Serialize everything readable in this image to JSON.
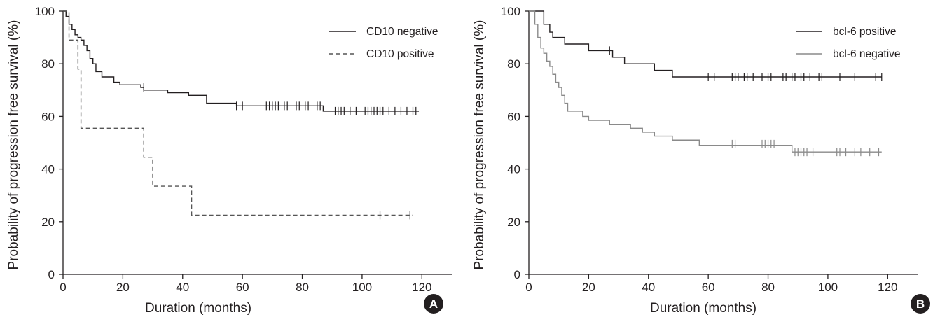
{
  "chart_data": [
    {
      "type": "line",
      "subtype": "kaplan-meier",
      "panel_label": "A",
      "title": "",
      "xlabel": "Duration (months)",
      "ylabel": "Probability of progression free survival (%)",
      "xlim": [
        0,
        130
      ],
      "ylim": [
        0,
        100
      ],
      "xticks": [
        0,
        20,
        40,
        60,
        80,
        100,
        120
      ],
      "yticks": [
        0,
        20,
        40,
        60,
        80,
        100
      ],
      "grid": false,
      "legend_position": "top-right",
      "series": [
        {
          "name": "CD10 negative",
          "color": "#231f20",
          "dash": "solid",
          "steps": [
            [
              0,
              100
            ],
            [
              1,
              98
            ],
            [
              2,
              95
            ],
            [
              3,
              93
            ],
            [
              4,
              91
            ],
            [
              5,
              90
            ],
            [
              6,
              89
            ],
            [
              7,
              87
            ],
            [
              8,
              85
            ],
            [
              9,
              82
            ],
            [
              10,
              80
            ],
            [
              11,
              77
            ],
            [
              13,
              75
            ],
            [
              17,
              73
            ],
            [
              19,
              72
            ],
            [
              26,
              71
            ],
            [
              27,
              70
            ],
            [
              35,
              69
            ],
            [
              42,
              68
            ],
            [
              48,
              65
            ],
            [
              58,
              64
            ],
            [
              87,
              62
            ],
            [
              119,
              62
            ]
          ],
          "censored": [
            [
              27,
              71
            ],
            [
              58,
              64
            ],
            [
              60,
              64
            ],
            [
              68,
              64
            ],
            [
              69,
              64
            ],
            [
              70,
              64
            ],
            [
              71,
              64
            ],
            [
              72,
              64
            ],
            [
              74,
              64
            ],
            [
              75,
              64
            ],
            [
              78,
              64
            ],
            [
              79,
              64
            ],
            [
              81,
              64
            ],
            [
              82,
              64
            ],
            [
              85,
              64
            ],
            [
              86,
              64
            ],
            [
              91,
              62
            ],
            [
              92,
              62
            ],
            [
              93,
              62
            ],
            [
              94,
              62
            ],
            [
              96,
              62
            ],
            [
              98,
              62
            ],
            [
              101,
              62
            ],
            [
              102,
              62
            ],
            [
              103,
              62
            ],
            [
              104,
              62
            ],
            [
              105,
              62
            ],
            [
              106,
              62
            ],
            [
              107,
              62
            ],
            [
              109,
              62
            ],
            [
              111,
              62
            ],
            [
              113,
              62
            ],
            [
              115,
              62
            ],
            [
              117,
              62
            ],
            [
              118,
              62
            ]
          ]
        },
        {
          "name": "CD10 positive",
          "color": "#555555",
          "dash": "dashed",
          "steps": [
            [
              0,
              100
            ],
            [
              2,
              89
            ],
            [
              5,
              78
            ],
            [
              6,
              55.5
            ],
            [
              27,
              44.5
            ],
            [
              30,
              33.5
            ],
            [
              43,
              22.5
            ],
            [
              117,
              22.5
            ]
          ],
          "censored": [
            [
              106,
              22.5
            ],
            [
              116,
              22.5
            ]
          ]
        }
      ]
    },
    {
      "type": "line",
      "subtype": "kaplan-meier",
      "panel_label": "B",
      "title": "",
      "xlabel": "Duration (months)",
      "ylabel": "Probability of progression free survival (%)",
      "xlim": [
        0,
        130
      ],
      "ylim": [
        0,
        100
      ],
      "xticks": [
        0,
        20,
        40,
        60,
        80,
        100,
        120
      ],
      "yticks": [
        0,
        20,
        40,
        60,
        80,
        100
      ],
      "grid": false,
      "legend_position": "top-right",
      "series": [
        {
          "name": "bcl-6 positive",
          "color": "#231f20",
          "dash": "solid",
          "steps": [
            [
              0,
              100
            ],
            [
              5,
              95
            ],
            [
              7,
              92
            ],
            [
              8,
              90
            ],
            [
              12,
              87.5
            ],
            [
              20,
              85
            ],
            [
              28,
              82.5
            ],
            [
              32,
              80
            ],
            [
              42,
              77.5
            ],
            [
              48,
              75
            ],
            [
              118,
              75
            ]
          ],
          "censored": [
            [
              27,
              85
            ],
            [
              60,
              75
            ],
            [
              62,
              75
            ],
            [
              68,
              75
            ],
            [
              69,
              75
            ],
            [
              70,
              75
            ],
            [
              72,
              75
            ],
            [
              73,
              75
            ],
            [
              75,
              75
            ],
            [
              78,
              75
            ],
            [
              80,
              75
            ],
            [
              81,
              75
            ],
            [
              85,
              75
            ],
            [
              86,
              75
            ],
            [
              88,
              75
            ],
            [
              89,
              75
            ],
            [
              91,
              75
            ],
            [
              92,
              75
            ],
            [
              94,
              75
            ],
            [
              97,
              75
            ],
            [
              98,
              75
            ],
            [
              104,
              75
            ],
            [
              109,
              75
            ],
            [
              116,
              75
            ],
            [
              118,
              75
            ]
          ]
        },
        {
          "name": "bcl-6 negative",
          "color": "#8a8a8a",
          "dash": "solid",
          "steps": [
            [
              0,
              100
            ],
            [
              2,
              95
            ],
            [
              3,
              90
            ],
            [
              4,
              86
            ],
            [
              5,
              84
            ],
            [
              6,
              81
            ],
            [
              7,
              79
            ],
            [
              8,
              76
            ],
            [
              9,
              73
            ],
            [
              10,
              71
            ],
            [
              11,
              68
            ],
            [
              12,
              65
            ],
            [
              13,
              62
            ],
            [
              18,
              60
            ],
            [
              20,
              58.5
            ],
            [
              27,
              57
            ],
            [
              34,
              55.5
            ],
            [
              38,
              54
            ],
            [
              42,
              52.5
            ],
            [
              48,
              51
            ],
            [
              57,
              49
            ],
            [
              88,
              46.5
            ],
            [
              118,
              46.5
            ]
          ],
          "censored": [
            [
              68,
              49.5
            ],
            [
              69,
              49.5
            ],
            [
              78,
              49.5
            ],
            [
              79,
              49.5
            ],
            [
              80,
              49.5
            ],
            [
              81,
              49.5
            ],
            [
              82,
              49.5
            ],
            [
              89,
              46.5
            ],
            [
              90,
              46.5
            ],
            [
              91,
              46.5
            ],
            [
              92,
              46.5
            ],
            [
              93,
              46.5
            ],
            [
              95,
              46.5
            ],
            [
              103,
              46.5
            ],
            [
              104,
              46.5
            ],
            [
              106,
              46.5
            ],
            [
              109,
              46.5
            ],
            [
              111,
              46.5
            ],
            [
              114,
              46.5
            ],
            [
              117,
              46.5
            ]
          ]
        }
      ]
    }
  ]
}
